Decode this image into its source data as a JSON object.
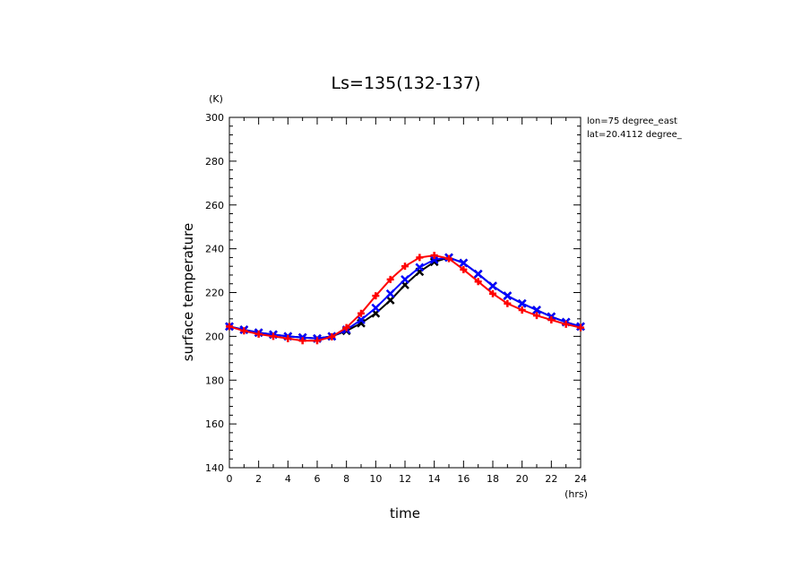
{
  "chart_data": {
    "type": "line",
    "title": "Ls=135(132-137)",
    "xlabel": "time",
    "ylabel": "surface temperature",
    "x_unit": "(hrs)",
    "y_unit": "(K)",
    "xlim": [
      0,
      24
    ],
    "ylim": [
      140,
      300
    ],
    "x_ticks": [
      0,
      2,
      4,
      6,
      8,
      10,
      12,
      14,
      16,
      18,
      20,
      22,
      24
    ],
    "y_ticks": [
      140,
      160,
      180,
      200,
      220,
      240,
      260,
      280,
      300
    ],
    "grid": false,
    "annotations": [
      "lon=75 degree_east",
      "lat=20.4112 degree_"
    ],
    "x": [
      0,
      1,
      2,
      3,
      4,
      5,
      6,
      7,
      8,
      9,
      10,
      11,
      12,
      13,
      14,
      15,
      16,
      17,
      18,
      19,
      20,
      21,
      22,
      23,
      24
    ],
    "series": [
      {
        "color": "#000000",
        "marker": "x",
        "values": [
          204.5,
          203.0,
          201.7,
          200.8,
          200.0,
          199.5,
          199.0,
          200.0,
          202.5,
          206.0,
          210.5,
          216.5,
          223.5,
          229.5,
          234.0,
          236.0,
          233.5,
          228.5,
          223.0,
          218.5,
          215.0,
          212.0,
          209.0,
          206.5,
          204.5
        ]
      },
      {
        "color": "#0000ff",
        "marker": "x",
        "values": [
          204.5,
          203.0,
          201.7,
          200.8,
          200.0,
          199.5,
          199.0,
          200.0,
          203.0,
          207.5,
          213.0,
          219.5,
          226.0,
          231.5,
          235.0,
          236.0,
          233.5,
          228.5,
          223.0,
          218.5,
          215.0,
          212.0,
          209.0,
          206.5,
          204.5
        ]
      },
      {
        "color": "#ff0000",
        "marker": "+",
        "values": [
          204.5,
          202.5,
          201.0,
          200.0,
          199.0,
          198.0,
          198.0,
          199.8,
          204.0,
          210.5,
          218.5,
          226.0,
          232.0,
          236.0,
          237.0,
          235.5,
          230.5,
          225.0,
          219.5,
          215.0,
          212.0,
          209.5,
          207.5,
          205.5,
          204.0
        ]
      }
    ]
  }
}
